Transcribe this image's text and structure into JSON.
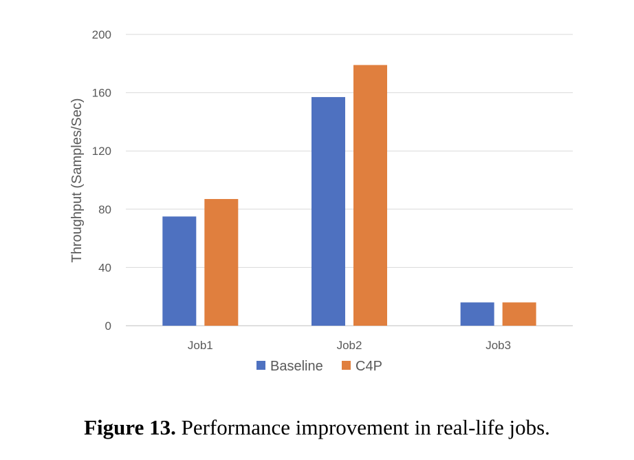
{
  "chart_data": {
    "type": "bar",
    "categories": [
      "Job1",
      "Job2",
      "Job3"
    ],
    "series": [
      {
        "name": "Baseline",
        "values": [
          75,
          157,
          16
        ],
        "color": "#4e71c0"
      },
      {
        "name": "C4P",
        "values": [
          87,
          179,
          16
        ],
        "color": "#e07f3e"
      }
    ],
    "title": "",
    "xlabel": "",
    "ylabel": "Throughput (Samples/Sec)",
    "ylim": [
      0,
      200
    ],
    "yticks": [
      0,
      40,
      80,
      120,
      160,
      200
    ],
    "grid": true,
    "legend_position": "bottom"
  },
  "caption": {
    "label": "Figure 13.",
    "text": " Performance improvement in real-life jobs."
  }
}
